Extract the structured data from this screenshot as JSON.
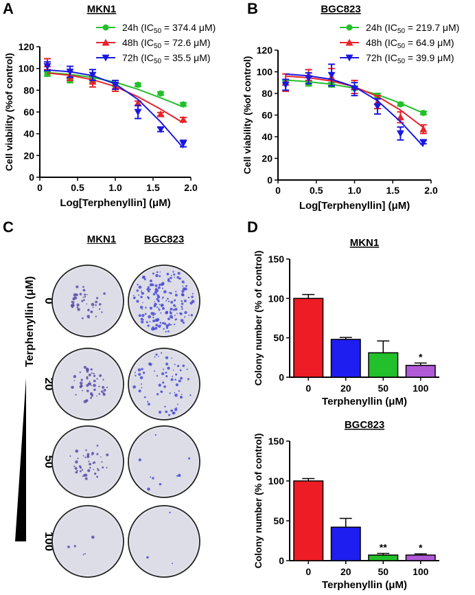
{
  "panels": {
    "A": "A",
    "B": "B",
    "C": "C",
    "D": "D"
  },
  "chart_data": [
    {
      "id": "A",
      "type": "line",
      "title": "MKN1",
      "xlabel": "Log[Terphenyllin] (μM)",
      "ylabel": "Cell viability (%of control)",
      "xlim": [
        0,
        2.0
      ],
      "ylim": [
        0,
        120
      ],
      "xticks": [
        "0",
        "0.5",
        "1.0",
        "1.5",
        "2.0"
      ],
      "yticks": [
        "0",
        "20",
        "40",
        "60",
        "80",
        "100",
        "120"
      ],
      "series": [
        {
          "name": "24h (IC50 = 374.4 μM)",
          "legend_prefix": "24h (IC",
          "legend_sub": "50",
          "legend_suffix": " = 374.4 μM)",
          "color": "#22c02a",
          "marker": "circle",
          "x": [
            0.1,
            0.4,
            0.7,
            1.0,
            1.3,
            1.6,
            1.9
          ],
          "y": [
            95,
            89,
            89,
            85,
            85,
            77,
            67
          ],
          "err": [
            2,
            2,
            2,
            1.5,
            1.5,
            1.5,
            1.5
          ],
          "fit": [
            96.2,
            94.6,
            91.8,
            87.3,
            80.9,
            73.0,
            64.7
          ]
        },
        {
          "name": "48h (IC50 = 72.6 μM)",
          "legend_prefix": "48h (IC",
          "legend_sub": "50",
          "legend_suffix": " = 72.6 μM)",
          "color": "#e8222a",
          "marker": "triangle-up",
          "x": [
            0.1,
            0.4,
            0.7,
            1.0,
            1.3,
            1.6,
            1.9
          ],
          "y": [
            104,
            93,
            88,
            83,
            68,
            58,
            53
          ],
          "err": [
            5,
            4,
            5,
            4,
            2,
            1.5,
            2
          ],
          "fit": [
            95.8,
            93.7,
            89.7,
            83.4,
            74.0,
            62.6,
            50.0
          ]
        },
        {
          "name": "72h (IC50 = 35.5 μM)",
          "legend_prefix": "72h (IC",
          "legend_sub": "50",
          "legend_suffix": " = 35.5 μM)",
          "color": "#1818e0",
          "marker": "triangle-down",
          "x": [
            0.1,
            0.4,
            0.7,
            1.0,
            1.3,
            1.6,
            1.9
          ],
          "y": [
            102,
            97,
            94,
            85,
            60,
            44,
            31
          ],
          "err": [
            4,
            5,
            5,
            4,
            6,
            2,
            3
          ],
          "fit": [
            98.6,
            97.0,
            93.4,
            85.8,
            71.6,
            50.9,
            27.0
          ]
        }
      ]
    },
    {
      "id": "B",
      "type": "line",
      "title": "BGC823",
      "xlabel": "Log[Terphenyllin] (μM)",
      "ylabel": "Cell viability (%of control)",
      "xlim": [
        0,
        2.0
      ],
      "ylim": [
        0,
        120
      ],
      "xticks": [
        "0",
        "0.5",
        "1.0",
        "1.5",
        "2.0"
      ],
      "yticks": [
        "0",
        "20",
        "40",
        "60",
        "80",
        "100",
        "120"
      ],
      "series": [
        {
          "name": "24h (IC50 = 219.7 μM)",
          "legend_prefix": "24h (IC",
          "legend_sub": "50",
          "legend_suffix": " = 219.7 μM)",
          "color": "#22c02a",
          "marker": "circle",
          "x": [
            0.1,
            0.4,
            0.7,
            1.0,
            1.3,
            1.6,
            1.9
          ],
          "y": [
            90,
            89,
            88,
            85,
            78,
            70,
            62
          ],
          "err": [
            2,
            2,
            2,
            2,
            2,
            1.5,
            1.5
          ],
          "fit": [
            92.4,
            90.8,
            88.5,
            84.8,
            78.9,
            71.0,
            61.8
          ]
        },
        {
          "name": "48h (IC50 = 64.9 μM)",
          "legend_prefix": "48h (IC",
          "legend_sub": "50",
          "legend_suffix": " = 64.9 μM)",
          "color": "#e8222a",
          "marker": "triangle-up",
          "x": [
            0.1,
            0.4,
            0.7,
            1.0,
            1.3,
            1.6,
            1.9
          ],
          "y": [
            90,
            97,
            95,
            86,
            72,
            58,
            47
          ],
          "err": [
            8,
            5,
            8,
            6,
            6,
            5,
            4
          ],
          "fit": [
            96.0,
            94.5,
            91.5,
            86.1,
            77.3,
            64.6,
            48.5
          ]
        },
        {
          "name": "72h (IC50 = 39.9 μM)",
          "legend_prefix": "72h (IC",
          "legend_sub": "50",
          "legend_suffix": " = 39.9 μM)",
          "color": "#1818e0",
          "marker": "triangle-down",
          "x": [
            0.1,
            0.4,
            0.7,
            1.0,
            1.3,
            1.6,
            1.9
          ],
          "y": [
            88,
            94,
            97,
            84,
            68,
            43,
            35
          ],
          "err": [
            5,
            5,
            10,
            6,
            7,
            6,
            1.5
          ],
          "fit": [
            97.9,
            96.3,
            93.0,
            86.2,
            73.3,
            54.0,
            31.0
          ]
        }
      ]
    },
    {
      "id": "D1",
      "type": "bar",
      "title": "MKN1",
      "xlabel": "Terphenyllin (μM)",
      "ylabel": "Colony number (% of control)",
      "ylim": [
        0,
        150
      ],
      "yticks": [
        "0",
        "50",
        "100",
        "150"
      ],
      "categories": [
        "0",
        "20",
        "50",
        "100"
      ],
      "values": [
        100,
        48,
        31,
        15
      ],
      "err": [
        5,
        2.5,
        15,
        3
      ],
      "colors": [
        "#ee1c24",
        "#1e1ef0",
        "#22c02a",
        "#b05ad8"
      ],
      "sig": [
        "",
        "",
        "",
        "*"
      ]
    },
    {
      "id": "D2",
      "type": "bar",
      "title": "BGC823",
      "xlabel": "Terphenyllin (μM)",
      "ylabel": "Colony number (% of control)",
      "ylim": [
        0,
        150
      ],
      "yticks": [
        "0",
        "50",
        "100",
        "150"
      ],
      "categories": [
        "0",
        "20",
        "50",
        "100"
      ],
      "values": [
        100,
        42,
        7,
        7
      ],
      "err": [
        3,
        11,
        2,
        1.5
      ],
      "colors": [
        "#ee1c24",
        "#1e1ef0",
        "#22c02a",
        "#b05ad8"
      ],
      "sig": [
        "",
        "",
        "**",
        "*"
      ]
    }
  ],
  "panel_c": {
    "col_labels": [
      "MKN1",
      "BGC823"
    ],
    "axis_label": "Terphenyllin (μM)",
    "row_labels": [
      "0",
      "20",
      "50",
      "100"
    ],
    "colony_density": {
      "MKN1": [
        0.25,
        0.3,
        0.25,
        0.03
      ],
      "BGC823": [
        1.0,
        0.4,
        0.05,
        0.02
      ]
    }
  }
}
